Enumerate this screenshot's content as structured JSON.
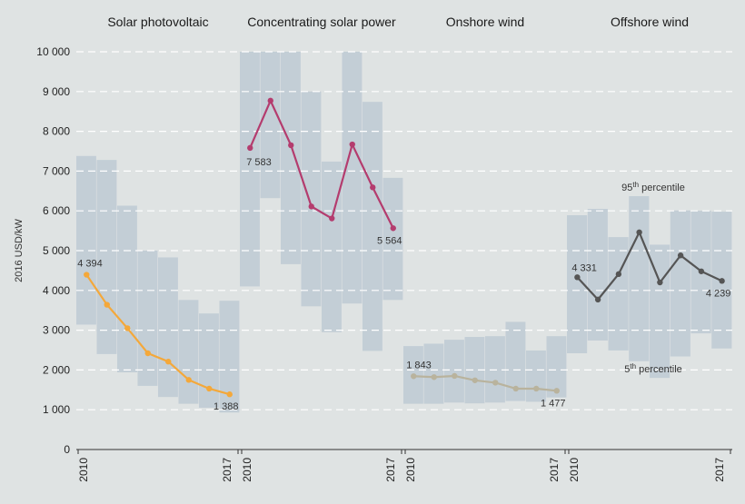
{
  "colors": {
    "background": "#dfe3e3",
    "band": "#c3ced6",
    "grid": "#ffffff",
    "axis": "#333333"
  },
  "chart_data": {
    "type": "line",
    "ylabel": "2016 USD/kW",
    "ylim": [
      0,
      10000
    ],
    "yticks": [
      "0",
      "1 000",
      "2 000",
      "3 000",
      "4 000",
      "5 000",
      "6 000",
      "7 000",
      "8 000",
      "9 000",
      "10 000"
    ],
    "grid": "horizontal dashed",
    "x": [
      2010,
      2011,
      2012,
      2013,
      2014,
      2015,
      2016,
      2017
    ],
    "x_tick_labels": [
      "2010",
      "2017"
    ],
    "annotations": {
      "p95_main": "95",
      "p95_sup": "th",
      "p95_rest": " percentile",
      "p5_main": "5",
      "p5_sup": "th",
      "p5_rest": " percentile"
    },
    "panels": [
      {
        "title": "Solar photovoltaic",
        "color": "#f4a83a",
        "values": [
          4394,
          3640,
          3050,
          2420,
          2210,
          1750,
          1530,
          1388
        ],
        "p95": [
          7380,
          7280,
          6130,
          5000,
          4830,
          3760,
          3420,
          3740
        ],
        "p5": [
          3140,
          2400,
          1940,
          1600,
          1320,
          1150,
          1050,
          930
        ],
        "start_label": "4 394",
        "end_label": "1 388"
      },
      {
        "title": "Concentrating solar power",
        "color": "#b43c6e",
        "values": [
          7583,
          8770,
          7650,
          6110,
          5810,
          7670,
          6590,
          5564
        ],
        "p95": [
          10000,
          10000,
          10000,
          9000,
          7240,
          10000,
          8740,
          6830
        ],
        "p5": [
          4100,
          6320,
          4660,
          3600,
          2950,
          3670,
          2480,
          3760
        ],
        "start_label": "7 583",
        "end_label": "5 564"
      },
      {
        "title": "Onshore wind",
        "color": "#b9b39d",
        "values": [
          1843,
          1820,
          1850,
          1740,
          1680,
          1530,
          1530,
          1477
        ],
        "p95": [
          2600,
          2660,
          2760,
          2830,
          2850,
          3210,
          2490,
          2850
        ],
        "p5": [
          1150,
          1150,
          1180,
          1160,
          1180,
          1220,
          1200,
          1310
        ],
        "start_label": "1 843",
        "end_label": "1 477"
      },
      {
        "title": "Offshore wind",
        "color": "#555555",
        "values": [
          4331,
          3770,
          4410,
          5460,
          4200,
          4880,
          4480,
          4239
        ],
        "p95": [
          5890,
          6050,
          5340,
          6370,
          5150,
          6010,
          6000,
          5980
        ],
        "p5": [
          2420,
          2740,
          2490,
          2220,
          1800,
          2340,
          2920,
          2540
        ],
        "start_label": "4 331",
        "end_label": "4 239"
      }
    ]
  }
}
